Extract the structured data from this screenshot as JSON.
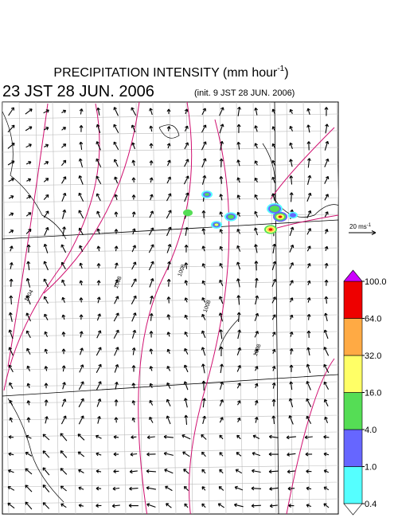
{
  "header": {
    "title": "PRECIPITATION INTENSITY (mm hour",
    "title_sup": "-1",
    "title_end": ")",
    "valid_time": "23 JST 28 JUN. 2006",
    "init_time": "(init. 9 JST 28 JUN. 2006)"
  },
  "wind_legend": {
    "label": "20 ms",
    "label_sup": "-1"
  },
  "isobar_labels": [
    "1004",
    "1008",
    "1008",
    "1008",
    "1008"
  ],
  "colorbar": {
    "levels": [
      {
        "value": 0.4,
        "label": "0.4"
      },
      {
        "value": 1,
        "label": "1.0"
      },
      {
        "value": 4,
        "label": "4.0"
      },
      {
        "value": 16,
        "label": "16.0"
      },
      {
        "value": 32,
        "label": "32.0"
      },
      {
        "value": 64,
        "label": "64.0"
      },
      {
        "value": 100,
        "label": "100.0"
      }
    ],
    "colors": [
      "#55ffff",
      "#6666ff",
      "#55dd55",
      "#ffff66",
      "#ffaa44",
      "#ee0000"
    ],
    "under_color": "#ffffff",
    "over_color": "#cc00ff"
  }
}
